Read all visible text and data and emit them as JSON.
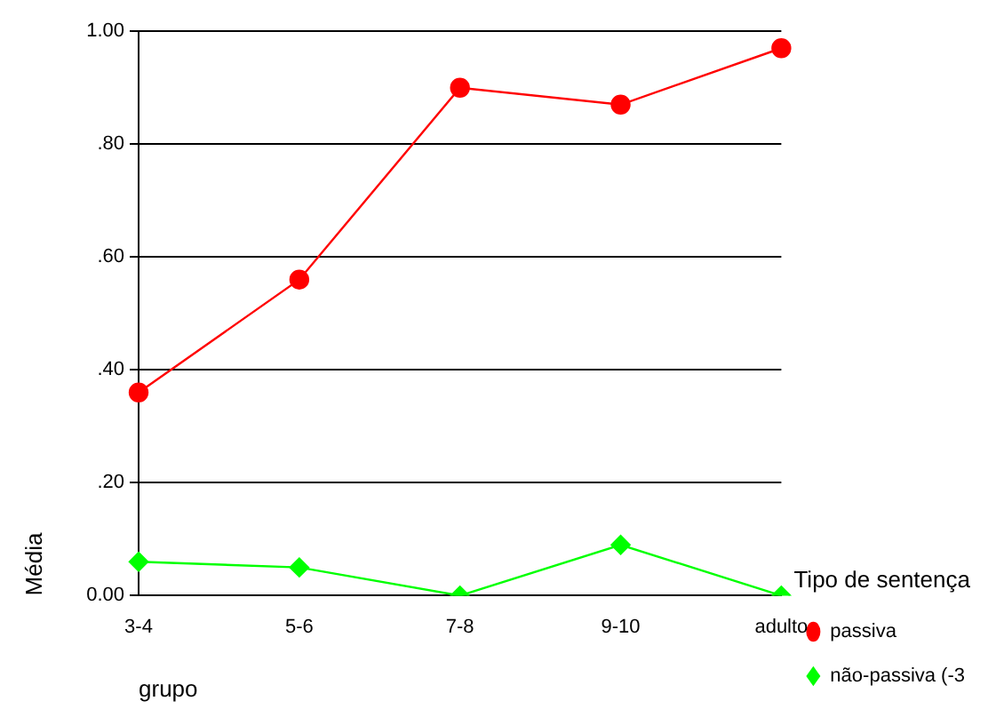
{
  "chart_data": {
    "type": "line",
    "xlabel": "grupo",
    "ylabel": "Média",
    "legend_title": "Tipo de sentença",
    "categories": [
      "3-4",
      "5-6",
      "7-8",
      "9-10",
      "adulto"
    ],
    "series": [
      {
        "name": "passiva",
        "color": "#ff0000",
        "marker": "circle",
        "values": [
          0.36,
          0.56,
          0.9,
          0.87,
          0.97
        ]
      },
      {
        "name": "não-passiva (-3",
        "color": "#00ff00",
        "marker": "diamond",
        "values": [
          0.06,
          0.05,
          0.0,
          0.09,
          0.0
        ]
      }
    ],
    "ylim": [
      0,
      1
    ],
    "yticks": [
      {
        "value": 0,
        "label": "0.00"
      },
      {
        "value": 0.2,
        "label": ".20"
      },
      {
        "value": 0.4,
        "label": ".40"
      },
      {
        "value": 0.6,
        "label": ".60"
      },
      {
        "value": 0.8,
        "label": ".80"
      },
      {
        "value": 1,
        "label": "1.00"
      }
    ],
    "grid": "y",
    "legend": "right"
  }
}
